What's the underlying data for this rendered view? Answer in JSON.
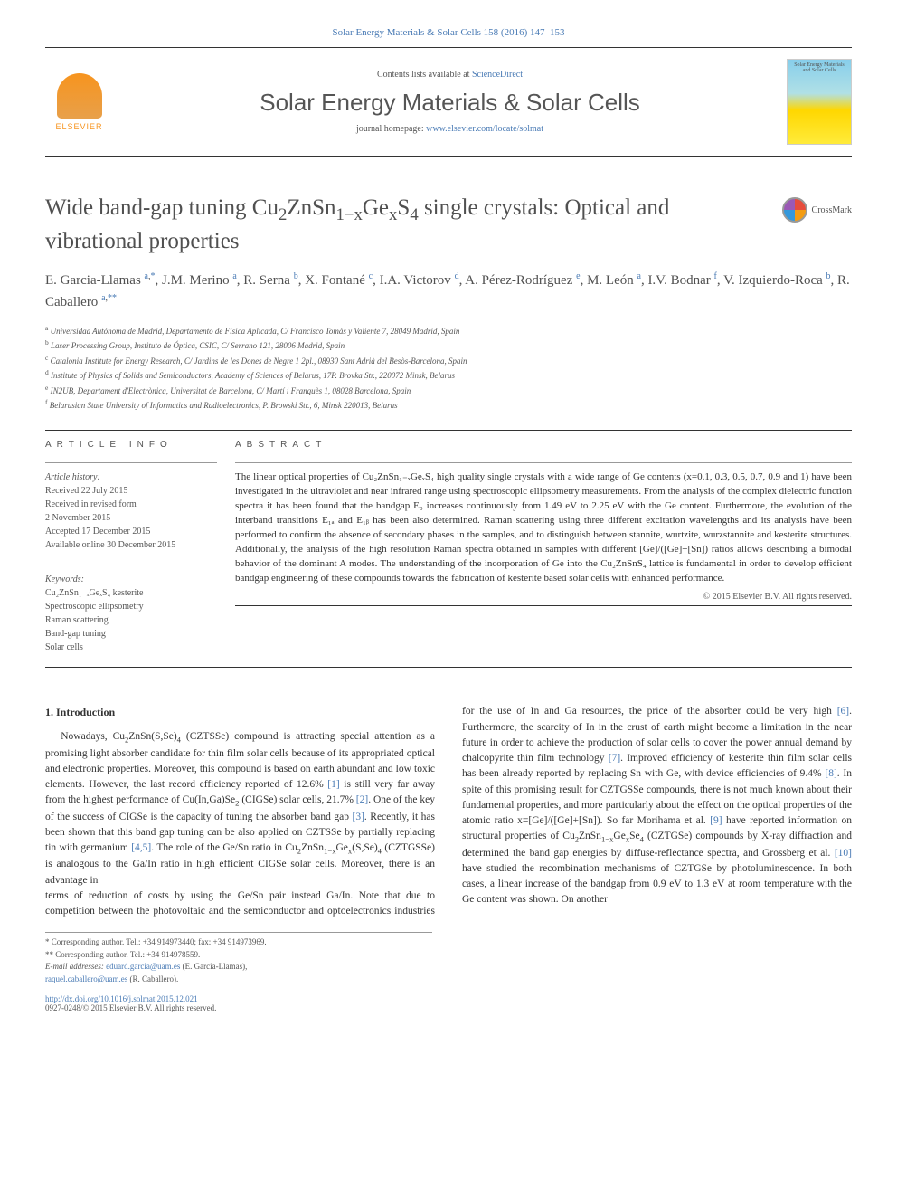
{
  "top_link": "Solar Energy Materials & Solar Cells 158 (2016) 147–153",
  "header": {
    "contents_prefix": "Contents lists available at ",
    "contents_link": "ScienceDirect",
    "journal_title": "Solar Energy Materials & Solar Cells",
    "homepage_prefix": "journal homepage: ",
    "homepage_url": "www.elsevier.com/locate/solmat",
    "elsevier": "ELSEVIER",
    "cover_text": "Solar Energy Materials and Solar Cells"
  },
  "crossmark": "CrossMark",
  "title_parts": {
    "p1": "Wide band-gap tuning Cu",
    "p2": "ZnSn",
    "p3": "Ge",
    "p4": "S",
    "p5": " single crystals: Optical and vibrational properties",
    "s1": "2",
    "s2": "1−x",
    "s3": "x",
    "s4": "4"
  },
  "authors_html": "E. Garcia-Llamas <sup><a>a</a>,<a>*</a></sup>, J.M. Merino <sup><a>a</a></sup>, R. Serna <sup><a>b</a></sup>, X. Fontané <sup><a>c</a></sup>, I.A. Victorov <sup><a>d</a></sup>, A. Pérez-Rodríguez <sup><a>e</a></sup>, M. León <sup><a>a</a></sup>, I.V. Bodnar <sup><a>f</a></sup>, V. Izquierdo-Roca <sup><a>b</a></sup>, R. Caballero <sup><a>a</a>,<a>**</a></sup>",
  "affiliations": [
    {
      "sup": "a",
      "text": "Universidad Autónoma de Madrid, Departamento de Física Aplicada, C/ Francisco Tomás y Valiente 7, 28049 Madrid, Spain"
    },
    {
      "sup": "b",
      "text": "Laser Processing Group, Instituto de Óptica, CSIC, C/ Serrano 121, 28006 Madrid, Spain"
    },
    {
      "sup": "c",
      "text": "Catalonia Institute for Energy Research, C/ Jardins de les Dones de Negre 1 2pl., 08930 Sant Adrià del Besòs-Barcelona, Spain"
    },
    {
      "sup": "d",
      "text": "Institute of Physics of Solids and Semiconductors, Academy of Sciences of Belarus, 17P. Brovka Str., 220072 Minsk, Belarus"
    },
    {
      "sup": "e",
      "text": "IN2UB, Departament d'Electrònica, Universitat de Barcelona, C/ Martí i Franquès 1, 08028 Barcelona, Spain"
    },
    {
      "sup": "f",
      "text": "Belarusian State University of Informatics and Radioelectronics, P. Browski Str., 6, Minsk 220013, Belarus"
    }
  ],
  "info": {
    "heading": "ARTICLE INFO",
    "history_label": "Article history:",
    "history": [
      "Received 22 July 2015",
      "Received in revised form",
      "2 November 2015",
      "Accepted 17 December 2015",
      "Available online 30 December 2015"
    ],
    "keywords_label": "Keywords:",
    "keywords": [
      "Cu₂ZnSn₁₋ₓGeₓS₄ kesterite",
      "Spectroscopic ellipsometry",
      "Raman scattering",
      "Band-gap tuning",
      "Solar cells"
    ]
  },
  "abstract": {
    "heading": "ABSTRACT",
    "text": "The linear optical properties of Cu₂ZnSn₁₋ₓGeₓS₄ high quality single crystals with a wide range of Ge contents (x=0.1, 0.3, 0.5, 0.7, 0.9 and 1) have been investigated in the ultraviolet and near infrared range using spectroscopic ellipsometry measurements. From the analysis of the complex dielectric function spectra it has been found that the bandgap E₀ increases continuously from 1.49 eV to 2.25 eV with the Ge content. Furthermore, the evolution of the interband transitions E₁ₐ and E₁ᵦ has been also determined. Raman scattering using three different excitation wavelengths and its analysis have been performed to confirm the absence of secondary phases in the samples, and to distinguish between stannite, wurtzite, wurzstannite and kesterite structures. Additionally, the analysis of the high resolution Raman spectra obtained in samples with different [Ge]/([Ge]+[Sn]) ratios allows describing a bimodal behavior of the dominant A modes. The understanding of the incorporation of Ge into the Cu₂ZnSnS₄ lattice is fundamental in order to develop efficient bandgap engineering of these compounds towards the fabrication of kesterite based solar cells with enhanced performance.",
    "copyright": "© 2015 Elsevier B.V. All rights reserved."
  },
  "body": {
    "heading": "1.  Introduction",
    "p1_html": "Nowadays, Cu<sub>2</sub>ZnSn(S,Se)<sub>4</sub> (CZTSSe) compound is attracting special attention as a promising light absorber candidate for thin film solar cells because of its appropriated optical and electronic properties. Moreover, this compound is based on earth abundant and low toxic elements. However, the last record efficiency reported of 12.6% <a>[1]</a> is still very far away from the highest performance of Cu(In,Ga)Se<sub>2</sub> (CIGSe) solar cells, 21.7% <a>[2]</a>. One of the key of the success of CIGSe is the capacity of tuning the absorber band gap <a>[3]</a>. Recently, it has been shown that this band gap tuning can be also applied on CZTSSe by partially replacing tin with germanium <a>[4,5]</a>. The role of the Ge/Sn ratio in Cu<sub>2</sub>ZnSn<sub>1−x</sub>Ge<sub>x</sub>(S,Se)<sub>4</sub> (CZTGSSe) is analogous to the Ga/In ratio in high efficient CIGSe solar cells. Moreover, there is an advantage in",
    "p2_html": "terms of reduction of costs by using the Ge/Sn pair instead Ga/In. Note that due to competition between the photovoltaic and the semiconductor and optoelectronics industries for the use of In and Ga resources, the price of the absorber could be very high <a>[6]</a>. Furthermore, the scarcity of In in the crust of earth might become a limitation in the near future in order to achieve the production of solar cells to cover the power annual demand by chalcopyrite thin film technology <a>[7]</a>. Improved efficiency of kesterite thin film solar cells has been already reported by replacing Sn with Ge, with device efficiencies of 9.4% <a>[8]</a>. In spite of this promising result for CZTGSSe compounds, there is not much known about their fundamental properties, and more particularly about the effect on the optical properties of the atomic ratio x=[Ge]/([Ge]+[Sn]). So far Morihama et al. <a>[9]</a> have reported information on structural properties of Cu<sub>2</sub>ZnSn<sub>1−x</sub>Ge<sub>x</sub>Se<sub>4</sub> (CZTGSe) compounds by X-ray diffraction and determined the band gap energies by diffuse-reflectance spectra, and Grossberg et al. <a>[10]</a> have studied the recombination mechanisms of CZTGSe by photoluminescence. In both cases, a linear increase of the bandgap from 0.9 eV to 1.3 eV at room temperature with the Ge content was shown. On another"
  },
  "footer": {
    "corr1": "* Corresponding author. Tel.: +34 914973440; fax: +34 914973969.",
    "corr2": "** Corresponding author. Tel.: +34 914978559.",
    "email_label": "E-mail addresses: ",
    "email1": "eduard.garcia@uam.es",
    "email1_name": " (E. Garcia-Llamas),",
    "email2": "raquel.caballero@uam.es",
    "email2_name": " (R. Caballero).",
    "doi": "http://dx.doi.org/10.1016/j.solmat.2015.12.021",
    "issn": "0927-0248/© 2015 Elsevier B.V. All rights reserved."
  }
}
